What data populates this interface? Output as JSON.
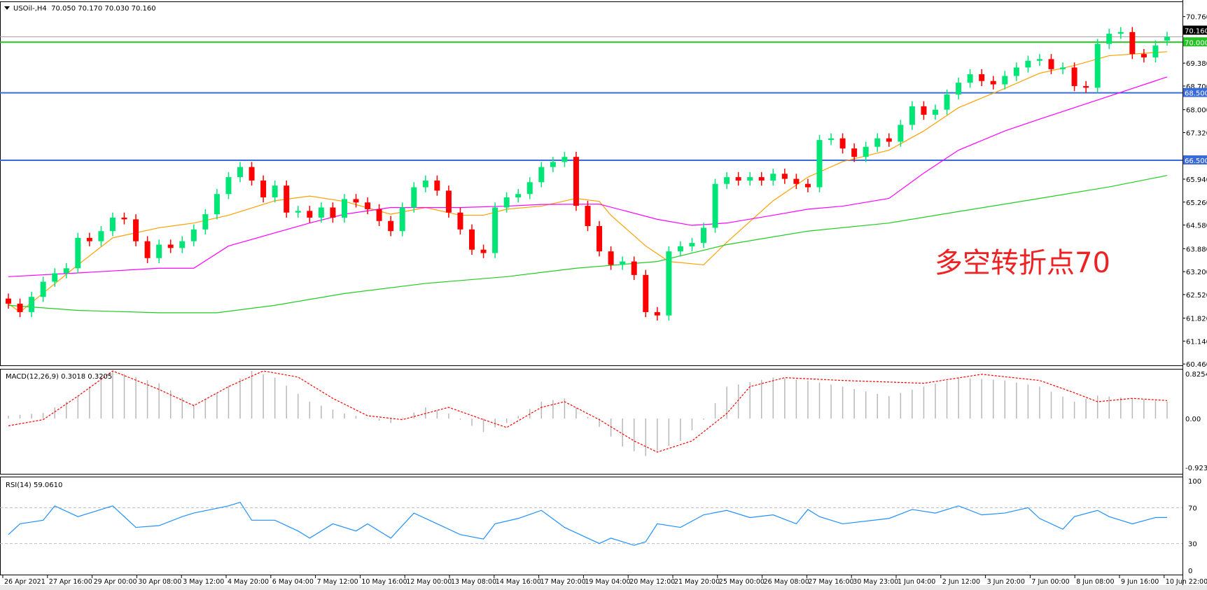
{
  "header": {
    "symbol": "USOil-,H4",
    "ohlc": "70.050 70.170 70.030 70.160",
    "macd_label": "MACD(12,26,9) 0.3018 0.3205",
    "rsi_label": "RSI(14) 59.0610"
  },
  "annotation": "多空转折点70",
  "colors": {
    "bull": "#00e676",
    "bear": "#ff0000",
    "level_green": "#22c322",
    "level_blue": "#3a6bd9",
    "ma_fast": "#ffa000",
    "ma_mid": "#ff00ff",
    "ma_slow": "#22cc22",
    "macd_hist": "#b8b8b8",
    "macd_signal": "#ff0000",
    "rsi": "#1e90ff"
  },
  "chart_data": [
    {
      "type": "candlestick",
      "title": "USOil-,H4",
      "ylim": [
        60.46,
        70.9
      ],
      "price_ticks": [
        "70.760",
        "69.380",
        "68.700",
        "68.000",
        "67.320",
        "65.940",
        "65.260",
        "64.580",
        "63.880",
        "63.200",
        "62.520",
        "61.820",
        "61.140",
        "60.460"
      ],
      "current_price": "70.160",
      "levels": [
        {
          "value": "70.000",
          "color": "#22c322"
        },
        {
          "value": "68.500",
          "color": "#3a6bd9"
        },
        {
          "value": "66.500",
          "color": "#3a6bd9"
        }
      ],
      "last_open": 70.05,
      "first_open": 62.4,
      "close": [
        62.25,
        62.0,
        62.45,
        62.9,
        63.15,
        63.3,
        64.2,
        64.1,
        64.4,
        64.8,
        64.75,
        64.1,
        63.6,
        64.0,
        63.9,
        64.1,
        64.45,
        64.9,
        65.5,
        66.0,
        66.3,
        65.9,
        65.4,
        65.75,
        64.95,
        65.0,
        64.8,
        65.1,
        64.8,
        65.35,
        65.25,
        65.05,
        64.7,
        64.4,
        65.1,
        65.7,
        65.9,
        65.6,
        64.95,
        64.45,
        63.85,
        63.75,
        65.1,
        65.4,
        65.5,
        65.85,
        66.3,
        66.45,
        66.6,
        65.15,
        64.55,
        63.8,
        63.4,
        63.5,
        63.1,
        62.0,
        61.9,
        63.8,
        63.95,
        64.05,
        64.5,
        65.8,
        66.0,
        65.9,
        66.0,
        65.9,
        66.1,
        65.95,
        65.8,
        65.7,
        67.1,
        67.15,
        66.85,
        66.6,
        66.9,
        67.15,
        67.05,
        67.55,
        68.1,
        67.85,
        68.0,
        68.45,
        68.8,
        69.05,
        68.85,
        68.75,
        69.0,
        69.25,
        69.45,
        69.5,
        69.2,
        69.25,
        68.7,
        68.65,
        69.95,
        70.25,
        70.3,
        69.65,
        69.55,
        69.9,
        70.16
      ],
      "moving_averages": [
        {
          "points": [
            [
              0,
              62.25
            ],
            [
              1,
              62.0
            ],
            [
              6,
              63.4
            ],
            [
              9,
              64.2
            ],
            [
              13,
              64.5
            ],
            [
              16,
              64.64
            ],
            [
              19,
              64.87
            ],
            [
              23,
              65.3
            ],
            [
              26,
              65.44
            ],
            [
              29,
              65.28
            ],
            [
              33,
              64.9
            ],
            [
              36,
              65.1
            ],
            [
              39,
              64.87
            ],
            [
              41,
              64.87
            ],
            [
              43,
              65.05
            ],
            [
              46,
              65.14
            ],
            [
              49,
              65.37
            ],
            [
              51,
              65.28
            ],
            [
              52,
              64.87
            ],
            [
              55,
              63.96
            ],
            [
              57,
              63.5
            ],
            [
              60,
              63.4
            ],
            [
              62,
              64.07
            ],
            [
              66,
              65.3
            ],
            [
              69,
              66.0
            ],
            [
              72,
              66.46
            ],
            [
              76,
              66.8
            ],
            [
              79,
              67.37
            ],
            [
              82,
              68.06
            ],
            [
              86,
              68.63
            ],
            [
              89,
              69.08
            ],
            [
              92,
              69.31
            ],
            [
              95,
              69.6
            ],
            [
              100,
              69.72
            ]
          ],
          "color": "#ffa000"
        },
        {
          "points": [
            [
              0,
              63.05
            ],
            [
              6,
              63.16
            ],
            [
              13,
              63.3
            ],
            [
              16,
              63.3
            ],
            [
              19,
              63.96
            ],
            [
              26,
              64.64
            ],
            [
              29,
              64.9
            ],
            [
              33,
              65.1
            ],
            [
              39,
              65.1
            ],
            [
              43,
              65.14
            ],
            [
              46,
              65.19
            ],
            [
              51,
              65.2
            ],
            [
              56,
              64.75
            ],
            [
              59,
              64.57
            ],
            [
              62,
              64.64
            ],
            [
              66,
              64.87
            ],
            [
              69,
              65.05
            ],
            [
              72,
              65.14
            ],
            [
              76,
              65.37
            ],
            [
              79,
              66.12
            ],
            [
              82,
              66.8
            ],
            [
              86,
              67.37
            ],
            [
              89,
              67.72
            ],
            [
              92,
              68.06
            ],
            [
              95,
              68.4
            ],
            [
              100,
              68.97
            ]
          ],
          "color": "#ff00ff"
        },
        {
          "points": [
            [
              0,
              62.2
            ],
            [
              6,
              62.05
            ],
            [
              13,
              61.98
            ],
            [
              18,
              61.98
            ],
            [
              23,
              62.2
            ],
            [
              29,
              62.55
            ],
            [
              36,
              62.85
            ],
            [
              43,
              63.05
            ],
            [
              49,
              63.3
            ],
            [
              56,
              63.5
            ],
            [
              62,
              64.0
            ],
            [
              69,
              64.4
            ],
            [
              76,
              64.64
            ],
            [
              82,
              64.98
            ],
            [
              89,
              65.37
            ],
            [
              95,
              65.71
            ],
            [
              100,
              66.05
            ]
          ],
          "color": "#22cc22"
        }
      ],
      "time_labels": [
        "26 Apr 2021",
        "27 Apr 16:00",
        "29 Apr 00:00",
        "30 Apr 08:00",
        "3 May 12:00",
        "4 May 20:00",
        "6 May 04:00",
        "7 May 12:00",
        "10 May 16:00",
        "12 May 00:00",
        "13 May 08:00",
        "14 May 16:00",
        "17 May 20:00",
        "19 May 04:00",
        "20 May 12:00",
        "21 May 20:00",
        "25 May 00:00",
        "26 May 08:00",
        "27 May 16:00",
        "30 May 23:00",
        "1 Jun 04:00",
        "2 Jun 12:00",
        "3 Jun 20:00",
        "7 Jun 00:00",
        "8 Jun 08:00",
        "9 Jun 16:00",
        "10 Jun 22:00"
      ]
    },
    {
      "type": "bar",
      "title": "MACD(12,26,9)",
      "ylim": [
        -0.9234,
        0.8254
      ],
      "ticks": [
        "0.8254",
        "0.00",
        "-0.9234"
      ],
      "histogram": [
        [
          0,
          0.05
        ],
        [
          3,
          0.1
        ],
        [
          6,
          0.4
        ],
        [
          8,
          0.75
        ],
        [
          9,
          0.85
        ],
        [
          13,
          0.63
        ],
        [
          16,
          0.25
        ],
        [
          18,
          0.45
        ],
        [
          21,
          0.85
        ],
        [
          23,
          0.73
        ],
        [
          26,
          0.3
        ],
        [
          29,
          0.09
        ],
        [
          33,
          -0.08
        ],
        [
          36,
          0.2
        ],
        [
          38,
          0.09
        ],
        [
          41,
          -0.24
        ],
        [
          43,
          -0.08
        ],
        [
          46,
          0.3
        ],
        [
          48,
          0.36
        ],
        [
          50,
          0.03
        ],
        [
          53,
          -0.5
        ],
        [
          55,
          -0.67
        ],
        [
          58,
          -0.4
        ],
        [
          60,
          -0.02
        ],
        [
          62,
          0.57
        ],
        [
          66,
          0.73
        ],
        [
          69,
          0.68
        ],
        [
          72,
          0.57
        ],
        [
          76,
          0.4
        ],
        [
          79,
          0.57
        ],
        [
          82,
          0.73
        ],
        [
          86,
          0.68
        ],
        [
          89,
          0.57
        ],
        [
          92,
          0.3
        ],
        [
          94,
          0.41
        ],
        [
          97,
          0.36
        ],
        [
          100,
          0.3018
        ]
      ],
      "signal": [
        [
          0,
          -0.13
        ],
        [
          3,
          -0.02
        ],
        [
          6,
          0.4
        ],
        [
          9,
          0.85
        ],
        [
          13,
          0.52
        ],
        [
          16,
          0.23
        ],
        [
          19,
          0.57
        ],
        [
          22,
          0.85
        ],
        [
          25,
          0.74
        ],
        [
          28,
          0.36
        ],
        [
          31,
          0.05
        ],
        [
          34,
          -0.02
        ],
        [
          38,
          0.2
        ],
        [
          41,
          -0.02
        ],
        [
          43,
          -0.16
        ],
        [
          46,
          0.2
        ],
        [
          48,
          0.3
        ],
        [
          51,
          -0.02
        ],
        [
          54,
          -0.4
        ],
        [
          56,
          -0.6
        ],
        [
          59,
          -0.4
        ],
        [
          62,
          0.09
        ],
        [
          64,
          0.57
        ],
        [
          67,
          0.73
        ],
        [
          72,
          0.68
        ],
        [
          79,
          0.63
        ],
        [
          84,
          0.79
        ],
        [
          89,
          0.68
        ],
        [
          92,
          0.46
        ],
        [
          94,
          0.3
        ],
        [
          97,
          0.36
        ],
        [
          100,
          0.3205
        ]
      ]
    },
    {
      "type": "line",
      "title": "RSI(14)",
      "ylim": [
        0,
        100
      ],
      "ticks": [
        "100",
        "70",
        "30",
        "0"
      ],
      "levels": [
        70,
        30
      ],
      "values": [
        [
          0,
          40
        ],
        [
          1,
          52
        ],
        [
          3,
          56
        ],
        [
          4,
          72
        ],
        [
          6,
          60
        ],
        [
          8,
          68
        ],
        [
          9,
          72
        ],
        [
          11,
          48
        ],
        [
          13,
          50
        ],
        [
          15,
          60
        ],
        [
          16,
          64
        ],
        [
          19,
          72
        ],
        [
          20,
          76
        ],
        [
          21,
          56
        ],
        [
          23,
          56
        ],
        [
          25,
          44
        ],
        [
          26,
          36
        ],
        [
          28,
          52
        ],
        [
          30,
          44
        ],
        [
          31,
          52
        ],
        [
          33,
          36
        ],
        [
          35,
          64
        ],
        [
          37,
          52
        ],
        [
          39,
          40
        ],
        [
          41,
          35
        ],
        [
          42,
          52
        ],
        [
          44,
          58
        ],
        [
          46,
          67
        ],
        [
          48,
          48
        ],
        [
          50,
          36
        ],
        [
          51,
          30
        ],
        [
          52,
          36
        ],
        [
          54,
          28
        ],
        [
          55,
          32
        ],
        [
          56,
          52
        ],
        [
          58,
          48
        ],
        [
          60,
          62
        ],
        [
          62,
          67
        ],
        [
          64,
          59
        ],
        [
          66,
          62
        ],
        [
          68,
          52
        ],
        [
          69,
          68
        ],
        [
          70,
          60
        ],
        [
          72,
          52
        ],
        [
          76,
          58
        ],
        [
          78,
          68
        ],
        [
          80,
          64
        ],
        [
          82,
          72
        ],
        [
          84,
          62
        ],
        [
          86,
          64
        ],
        [
          88,
          70
        ],
        [
          89,
          58
        ],
        [
          91,
          46
        ],
        [
          92,
          60
        ],
        [
          94,
          67
        ],
        [
          95,
          60
        ],
        [
          97,
          52
        ],
        [
          99,
          59
        ],
        [
          100,
          59.061
        ]
      ]
    }
  ]
}
